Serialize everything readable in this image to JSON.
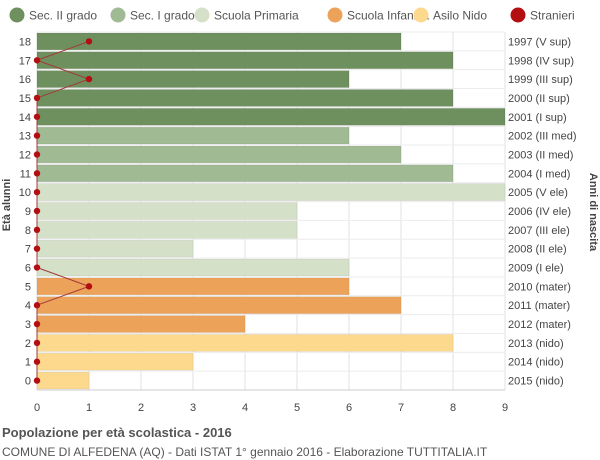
{
  "footer": {
    "title": "Popolazione per età scolastica - 2016",
    "subtitle": "COMUNE DI ALFEDENA (AQ) - Dati ISTAT 1° gennaio 2016 - Elaborazione TUTTITALIA.IT"
  },
  "chart_data": {
    "type": "bar",
    "orientation": "horizontal",
    "ylabel": "Età alunni",
    "ylabel_right": "Anni di nascita",
    "xlim": [
      0,
      9
    ],
    "x_ticks": [
      0,
      1,
      2,
      3,
      4,
      5,
      6,
      7,
      8,
      9
    ],
    "grid": true,
    "legend_position": "top",
    "legend": [
      {
        "name": "Sec. II grado",
        "color": "#6e8f5e"
      },
      {
        "name": "Sec. I grado",
        "color": "#a0ba94"
      },
      {
        "name": "Scuola Primaria",
        "color": "#d5e0c8"
      },
      {
        "name": "Scuola Infanzia",
        "color": "#eda25a"
      },
      {
        "name": "Asilo Nido",
        "color": "#fdd98e"
      },
      {
        "name": "Stranieri",
        "color": "#b30f13"
      }
    ],
    "rows": [
      {
        "age": "18",
        "year": "1997 (V sup)",
        "value": 7,
        "stranieri": 1,
        "group": 0
      },
      {
        "age": "17",
        "year": "1998 (IV sup)",
        "value": 8,
        "stranieri": 0,
        "group": 0
      },
      {
        "age": "16",
        "year": "1999 (III sup)",
        "value": 6,
        "stranieri": 1,
        "group": 0
      },
      {
        "age": "15",
        "year": "2000 (II sup)",
        "value": 8,
        "stranieri": 0,
        "group": 0
      },
      {
        "age": "14",
        "year": "2001 (I sup)",
        "value": 9,
        "stranieri": 0,
        "group": 0
      },
      {
        "age": "13",
        "year": "2002 (III med)",
        "value": 6,
        "stranieri": 0,
        "group": 1
      },
      {
        "age": "12",
        "year": "2003 (II med)",
        "value": 7,
        "stranieri": 0,
        "group": 1
      },
      {
        "age": "11",
        "year": "2004 (I med)",
        "value": 8,
        "stranieri": 0,
        "group": 1
      },
      {
        "age": "10",
        "year": "2005 (V ele)",
        "value": 9,
        "stranieri": 0,
        "group": 2
      },
      {
        "age": "9",
        "year": "2006 (IV ele)",
        "value": 5,
        "stranieri": 0,
        "group": 2
      },
      {
        "age": "8",
        "year": "2007 (III ele)",
        "value": 5,
        "stranieri": 0,
        "group": 2
      },
      {
        "age": "7",
        "year": "2008 (II ele)",
        "value": 3,
        "stranieri": 0,
        "group": 2
      },
      {
        "age": "6",
        "year": "2009 (I ele)",
        "value": 6,
        "stranieri": 0,
        "group": 2
      },
      {
        "age": "5",
        "year": "2010 (mater)",
        "value": 6,
        "stranieri": 1,
        "group": 3
      },
      {
        "age": "4",
        "year": "2011 (mater)",
        "value": 7,
        "stranieri": 0,
        "group": 3
      },
      {
        "age": "3",
        "year": "2012 (mater)",
        "value": 4,
        "stranieri": 0,
        "group": 3
      },
      {
        "age": "2",
        "year": "2013 (nido)",
        "value": 8,
        "stranieri": 0,
        "group": 4
      },
      {
        "age": "1",
        "year": "2014 (nido)",
        "value": 3,
        "stranieri": 0,
        "group": 4
      },
      {
        "age": "0",
        "year": "2015 (nido)",
        "value": 1,
        "stranieri": 0,
        "group": 4
      }
    ]
  }
}
